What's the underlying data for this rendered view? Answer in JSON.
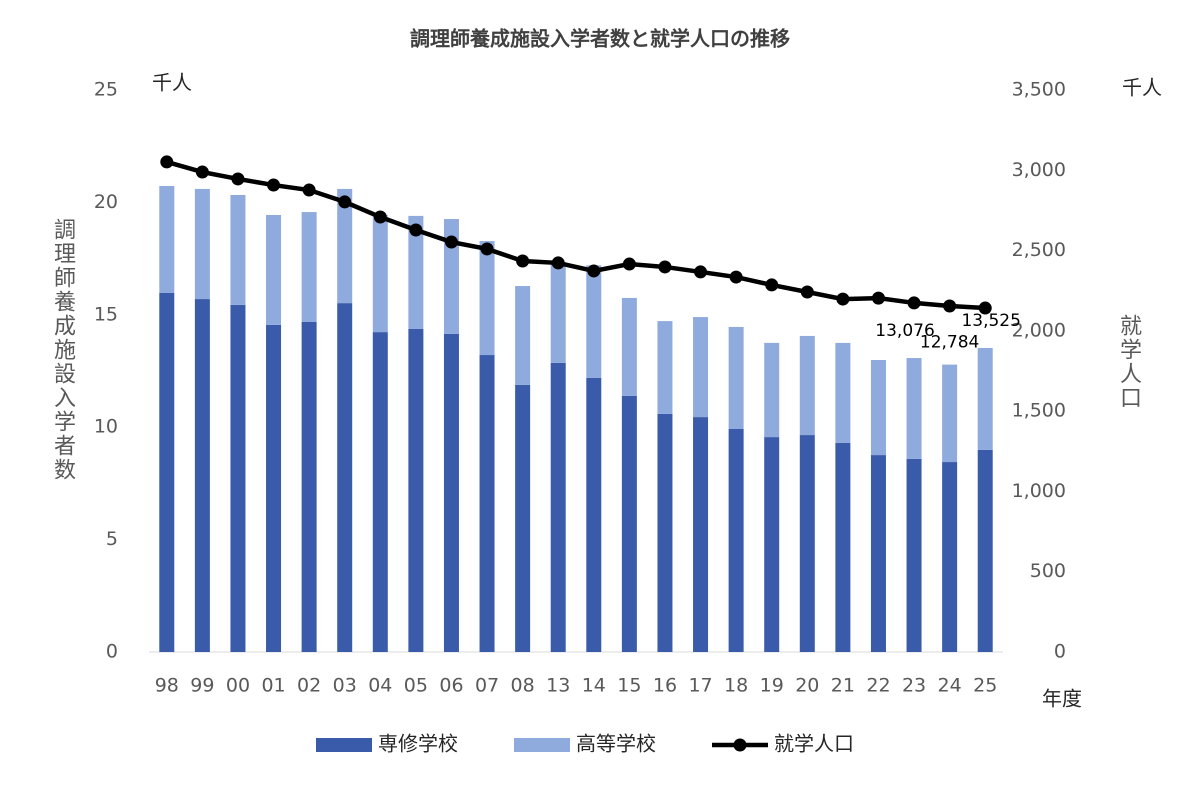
{
  "chart_data": {
    "type": "bar-line",
    "title": "調理師養成施設入学者数と就学人口の推移",
    "y_unit": "千人",
    "y2_unit": "千人",
    "ylabel": "調理師養成施設入学者数",
    "y2label": "就学人口",
    "xlabel": "年度",
    "categories": [
      "98",
      "99",
      "00",
      "01",
      "02",
      "03",
      "04",
      "05",
      "06",
      "07",
      "08",
      "13",
      "14",
      "15",
      "16",
      "17",
      "18",
      "19",
      "20",
      "21",
      "22",
      "23",
      "24",
      "25"
    ],
    "series": [
      {
        "name": "専修学校",
        "color": "#3a5ba9",
        "stack": true,
        "values": [
          15.97,
          15.7,
          15.44,
          14.55,
          14.68,
          15.52,
          14.23,
          14.37,
          14.15,
          13.21,
          11.88,
          12.86,
          12.19,
          11.39,
          10.59,
          10.45,
          9.92,
          9.56,
          9.65,
          9.3,
          8.76,
          8.59,
          8.45,
          8.99
        ]
      },
      {
        "name": "高等学校",
        "color": "#8faadc",
        "stack": true,
        "values": [
          4.76,
          4.9,
          4.89,
          4.89,
          4.89,
          5.08,
          5.21,
          5.03,
          5.11,
          5.07,
          4.4,
          4.49,
          5.01,
          4.36,
          4.13,
          4.45,
          4.54,
          4.19,
          4.41,
          4.45,
          4.23,
          4.486,
          4.334,
          4.535
        ]
      },
      {
        "name": "就学人口",
        "color": "#000000",
        "axis": "y2",
        "kind": "line",
        "values": [
          3052,
          2989,
          2946,
          2908,
          2877,
          2803,
          2709,
          2628,
          2553,
          2510,
          2435,
          2423,
          2373,
          2416,
          2398,
          2367,
          2335,
          2286,
          2242,
          2198,
          2204,
          2174,
          2155,
          2142
        ]
      }
    ],
    "annotations": [
      {
        "category": "23",
        "value": 13.076,
        "label": "13,076"
      },
      {
        "category": "24",
        "value": 12.784,
        "label": "12,784"
      },
      {
        "category": "25",
        "value": 13.525,
        "label": "13,525"
      }
    ],
    "ylim": [
      0,
      25
    ],
    "yticks": [
      0,
      5,
      10,
      15,
      20,
      25
    ],
    "y2lim": [
      0,
      3500
    ],
    "y2ticks": [
      0,
      500,
      {
        "value": 1000,
        "label": "1,000"
      },
      {
        "value": 1500,
        "label": "1,500"
      },
      {
        "value": 2000,
        "label": "2,000"
      },
      {
        "value": 2500,
        "label": "2,500"
      },
      {
        "value": 3000,
        "label": "3,000"
      },
      {
        "value": 3500,
        "label": "3,500"
      }
    ],
    "legend": "bottom",
    "grid": false
  }
}
